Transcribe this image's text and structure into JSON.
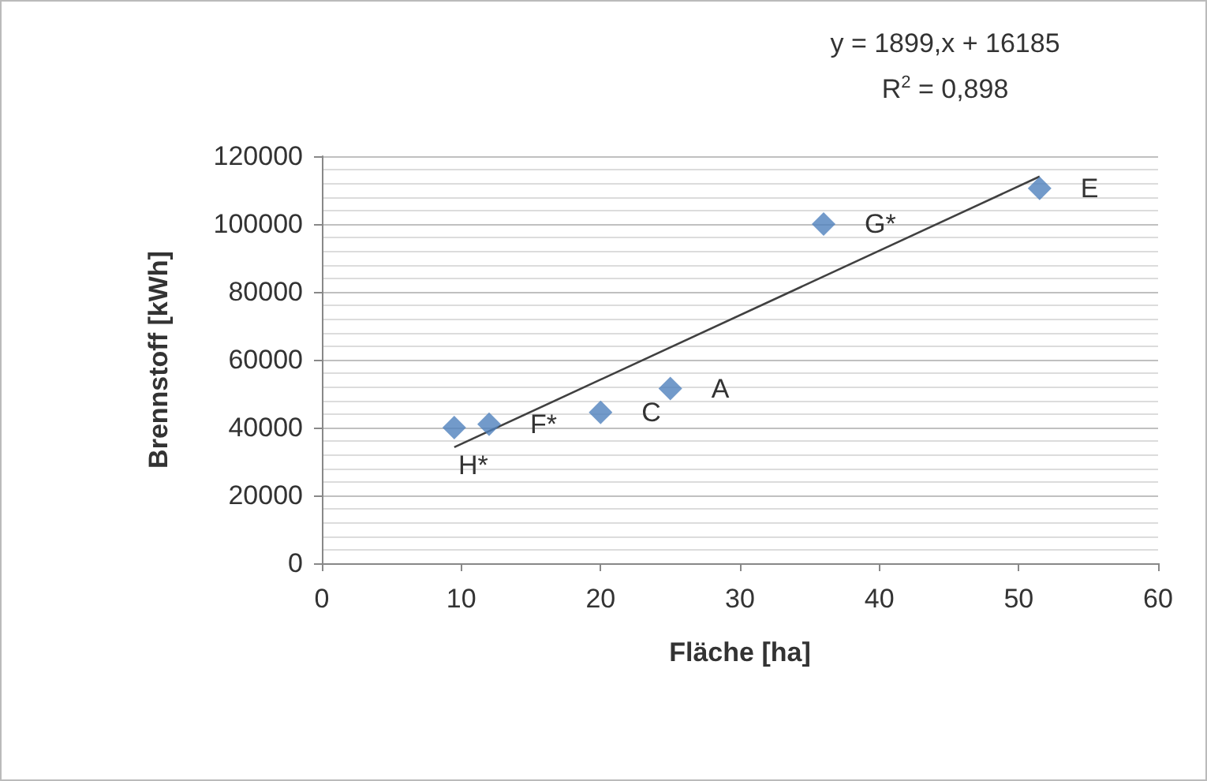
{
  "chart_data": {
    "type": "scatter",
    "xlabel": "Fläche [ha]",
    "ylabel": "Brennstoff [kWh]",
    "xlim": [
      0,
      60
    ],
    "xticks": [
      0,
      10,
      20,
      30,
      40,
      50,
      60
    ],
    "ylim": [
      0,
      120000
    ],
    "yticks": [
      0,
      20000,
      40000,
      60000,
      80000,
      100000,
      120000
    ],
    "grid": "y",
    "series": [
      {
        "marker": "diamond",
        "color": "#4f81bd",
        "x": [
          9.5,
          12,
          20,
          25,
          36,
          51.5
        ],
        "values": [
          40000,
          41000,
          44500,
          51500,
          100000,
          110500
        ]
      },
      {
        "type": "line",
        "marker": "none",
        "color": "#404040",
        "x": [
          9.5,
          51.5
        ],
        "values": [
          34200,
          114000
        ]
      }
    ],
    "annotations": [
      "y = 1899,x + 16185",
      "R$^{2}$ = 0,898",
      {
        "text": "H*",
        "x": 9.5,
        "y": 40000
      },
      {
        "text": "F*",
        "x": 12,
        "y": 41000
      },
      {
        "text": "C",
        "x": 20,
        "y": 44500
      },
      {
        "text": "A",
        "x": 25,
        "y": 51500
      },
      {
        "text": "G*",
        "x": 36,
        "y": 100000
      },
      {
        "text": "E",
        "x": 51.5,
        "y": 110500
      }
    ]
  }
}
